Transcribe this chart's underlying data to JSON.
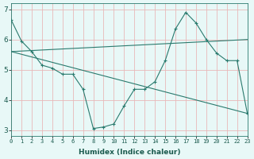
{
  "xlabel": "Humidex (Indice chaleur)",
  "ylabel": "",
  "bg_color": "#e8f8f7",
  "line_color": "#2a7a6e",
  "grid_color": "#e8b8b8",
  "line1_x": [
    0,
    1,
    2,
    3,
    4,
    5,
    6,
    7,
    8,
    9,
    10,
    11,
    12,
    13,
    14,
    15,
    16,
    17,
    18,
    19,
    20,
    21,
    22,
    23
  ],
  "line1_y": [
    6.65,
    5.95,
    5.6,
    5.15,
    5.05,
    4.85,
    4.85,
    4.35,
    3.05,
    3.1,
    3.2,
    3.8,
    4.35,
    4.35,
    4.6,
    5.3,
    6.35,
    6.9,
    6.55,
    6.0,
    5.55,
    5.3,
    5.3,
    3.55
  ],
  "line2_x": [
    0,
    23
  ],
  "line2_y": [
    5.6,
    6.0
  ],
  "line3_x": [
    0,
    23
  ],
  "line3_y": [
    5.6,
    3.55
  ],
  "xlim": [
    0,
    23
  ],
  "ylim": [
    2.8,
    7.2
  ],
  "xticks": [
    0,
    1,
    2,
    3,
    4,
    5,
    6,
    7,
    8,
    9,
    10,
    11,
    12,
    13,
    14,
    15,
    16,
    17,
    18,
    19,
    20,
    21,
    22,
    23
  ],
  "yticks": [
    3,
    4,
    5,
    6,
    7
  ],
  "xtick_labels": [
    "0",
    "1",
    "2",
    "3",
    "4",
    "5",
    "6",
    "7",
    "8",
    "9",
    "10",
    "11",
    "12",
    "13",
    "14",
    "15",
    "16",
    "17",
    "18",
    "19",
    "20",
    "21",
    "22",
    "23"
  ]
}
